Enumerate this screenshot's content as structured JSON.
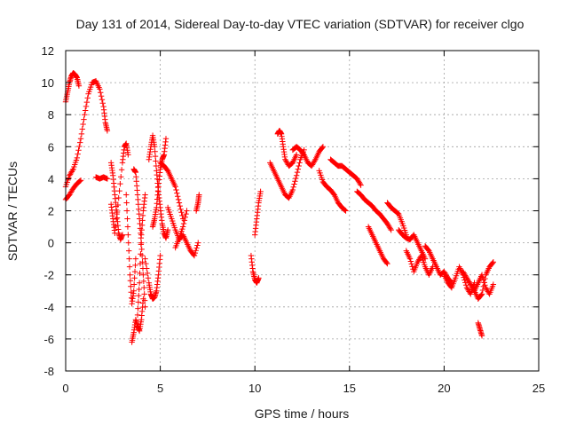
{
  "chart_data": {
    "type": "scatter",
    "title": "Day 131 of 2014, Sidereal Day-to-day VTEC variation (SDTVAR) for receiver clgo",
    "xlabel": "GPS time / hours",
    "ylabel": "SDTVAR / TECUs",
    "xlim": [
      0,
      25
    ],
    "ylim": [
      -8,
      12
    ],
    "xticks": [
      0,
      5,
      10,
      15,
      20,
      25
    ],
    "yticks": [
      -8,
      -6,
      -4,
      -2,
      0,
      2,
      4,
      6,
      8,
      10,
      12
    ],
    "grid": true,
    "marker": "+",
    "color": "#ff0000",
    "series": [
      {
        "name": "SDTVAR",
        "segments": [
          {
            "x": [
              0.0,
              0.2,
              0.4,
              0.6,
              0.8
            ],
            "y": [
              2.7,
              3.0,
              3.4,
              3.7,
              3.9
            ]
          },
          {
            "x": [
              0.0,
              0.1,
              0.2,
              0.3,
              0.4,
              0.5,
              0.6,
              0.7
            ],
            "y": [
              8.8,
              9.4,
              10.0,
              10.4,
              10.6,
              10.5,
              10.3,
              9.8
            ]
          },
          {
            "x": [
              0.0,
              0.2,
              0.4,
              0.6,
              0.8,
              1.0,
              1.2,
              1.4,
              1.6,
              1.8,
              2.0,
              2.1,
              2.2
            ],
            "y": [
              3.5,
              4.2,
              4.6,
              5.3,
              6.5,
              8.0,
              9.3,
              10.0,
              10.1,
              9.6,
              8.5,
              7.5,
              7.0
            ]
          },
          {
            "x": [
              1.6,
              1.8,
              2.0,
              2.2
            ],
            "y": [
              4.1,
              4.0,
              4.1,
              4.0
            ]
          },
          {
            "x": [
              2.4,
              2.5,
              2.6,
              2.7,
              2.8,
              2.9,
              3.0
            ],
            "y": [
              5.0,
              4.2,
              3.0,
              1.8,
              0.6,
              0.2,
              0.5
            ]
          },
          {
            "x": [
              2.4,
              2.5,
              2.6,
              2.8,
              3.0,
              3.1,
              3.2,
              3.3
            ],
            "y": [
              2.4,
              1.5,
              0.6,
              2.8,
              5.0,
              6.0,
              6.2,
              5.5
            ]
          },
          {
            "x": [
              3.2,
              3.3,
              3.4,
              3.5,
              3.6,
              3.7
            ],
            "y": [
              3.0,
              0.5,
              -2.0,
              -3.8,
              -3.0,
              -1.0
            ]
          },
          {
            "x": [
              3.5,
              3.6,
              3.7,
              3.8,
              3.9,
              4.0,
              4.1
            ],
            "y": [
              -6.2,
              -5.6,
              -4.8,
              -5.2,
              -5.5,
              -4.8,
              -3.5
            ]
          },
          {
            "x": [
              3.6,
              3.7,
              3.8,
              3.9,
              4.0,
              4.1,
              4.2
            ],
            "y": [
              4.6,
              4.4,
              3.0,
              1.5,
              0.0,
              -2.0,
              -4.0
            ]
          },
          {
            "x": [
              3.8,
              3.9,
              4.0,
              4.1,
              4.2
            ],
            "y": [
              -4.5,
              -2.5,
              0.5,
              2.0,
              3.0
            ]
          },
          {
            "x": [
              4.2,
              4.4,
              4.5,
              4.6,
              4.7,
              4.8,
              4.9,
              5.0
            ],
            "y": [
              -1.0,
              -2.5,
              -3.2,
              -3.5,
              -3.4,
              -3.0,
              -2.0,
              -0.8
            ]
          },
          {
            "x": [
              4.4,
              4.5,
              4.6,
              4.7,
              4.8,
              4.9,
              5.0,
              5.1,
              5.2,
              5.3,
              5.4
            ],
            "y": [
              5.2,
              6.0,
              6.7,
              6.0,
              4.5,
              3.2,
              2.2,
              1.2,
              0.6,
              0.3,
              0.8
            ]
          },
          {
            "x": [
              4.6,
              4.7,
              4.8,
              4.9,
              5.0,
              5.1,
              5.2,
              5.3
            ],
            "y": [
              1.0,
              1.5,
              2.2,
              3.5,
              4.6,
              5.2,
              5.5,
              6.5
            ]
          },
          {
            "x": [
              5.0,
              5.2,
              5.4,
              5.6,
              5.8,
              6.0,
              6.2
            ],
            "y": [
              5.0,
              4.8,
              4.5,
              4.0,
              3.5,
              2.5,
              1.5
            ]
          },
          {
            "x": [
              5.4,
              5.6,
              5.8,
              6.0,
              6.2,
              6.4,
              6.6,
              6.8,
              7.0
            ],
            "y": [
              2.2,
              1.5,
              0.8,
              0.2,
              0.5,
              0.0,
              -0.5,
              -0.8,
              0.0
            ]
          },
          {
            "x": [
              5.8,
              6.0,
              6.2,
              6.4
            ],
            "y": [
              -0.3,
              0.3,
              1.0,
              2.0
            ]
          },
          {
            "x": [
              6.9,
              7.0,
              7.05
            ],
            "y": [
              2.0,
              2.5,
              3.0
            ]
          },
          {
            "x": [
              9.8,
              9.9,
              10.0,
              10.1,
              10.2
            ],
            "y": [
              -0.8,
              -1.8,
              -2.3,
              -2.5,
              -2.2
            ]
          },
          {
            "x": [
              10.0,
              10.1,
              10.2,
              10.3
            ],
            "y": [
              0.5,
              1.5,
              2.5,
              3.2
            ]
          },
          {
            "x": [
              10.8,
              11.0,
              11.2,
              11.4,
              11.6,
              11.8,
              12.0,
              12.2,
              12.4,
              12.6
            ],
            "y": [
              5.0,
              4.5,
              4.0,
              3.5,
              3.0,
              2.8,
              3.3,
              4.2,
              5.2,
              5.8
            ]
          },
          {
            "x": [
              11.2,
              11.3,
              11.4,
              11.5,
              11.6,
              11.8,
              12.0,
              12.2
            ],
            "y": [
              6.8,
              7.0,
              6.8,
              6.0,
              5.2,
              4.8,
              5.0,
              5.5
            ]
          },
          {
            "x": [
              12.0,
              12.2,
              12.4,
              12.6,
              12.8,
              13.0,
              13.2,
              13.4,
              13.6
            ],
            "y": [
              5.8,
              6.0,
              5.8,
              5.5,
              5.0,
              4.8,
              5.2,
              5.7,
              6.0
            ]
          },
          {
            "x": [
              13.4,
              13.6,
              13.8,
              14.0,
              14.2,
              14.4,
              14.6,
              14.8
            ],
            "y": [
              4.5,
              3.8,
              3.5,
              3.3,
              3.0,
              2.5,
              2.2,
              2.0
            ]
          },
          {
            "x": [
              14.0,
              14.2,
              14.4,
              14.6,
              14.8,
              15.0,
              15.2,
              15.4,
              15.6
            ],
            "y": [
              5.2,
              5.0,
              4.8,
              4.8,
              4.6,
              4.4,
              4.2,
              4.0,
              3.6
            ]
          },
          {
            "x": [
              15.4,
              15.6,
              15.8,
              16.0,
              16.2,
              16.4,
              16.6,
              16.8,
              17.0,
              17.2
            ],
            "y": [
              3.2,
              3.0,
              2.7,
              2.5,
              2.3,
              2.0,
              1.8,
              1.5,
              1.2,
              0.8
            ]
          },
          {
            "x": [
              16.0,
              16.2,
              16.4,
              16.6,
              16.8,
              17.0
            ],
            "y": [
              1.0,
              0.5,
              0.0,
              -0.5,
              -1.0,
              -1.3
            ]
          },
          {
            "x": [
              17.0,
              17.2,
              17.4,
              17.6,
              17.8,
              18.0
            ],
            "y": [
              2.5,
              2.2,
              2.0,
              1.8,
              1.2,
              0.5
            ]
          },
          {
            "x": [
              17.6,
              17.8,
              18.0,
              18.2,
              18.4,
              18.6,
              18.8,
              19.0
            ],
            "y": [
              0.8,
              0.5,
              0.3,
              0.2,
              0.5,
              0.0,
              -0.5,
              -1.0
            ]
          },
          {
            "x": [
              18.0,
              18.2,
              18.4,
              18.6,
              18.8,
              19.0,
              19.2,
              19.4
            ],
            "y": [
              -0.5,
              -1.0,
              -1.8,
              -1.2,
              -0.8,
              -1.5,
              -2.0,
              -1.5
            ]
          },
          {
            "x": [
              19.0,
              19.2,
              19.4,
              19.6,
              19.8,
              20.0,
              20.2,
              20.4
            ],
            "y": [
              -0.2,
              -0.5,
              -1.0,
              -1.5,
              -2.0,
              -1.8,
              -2.2,
              -2.5
            ]
          },
          {
            "x": [
              20.0,
              20.2,
              20.4,
              20.6,
              20.8,
              21.0,
              21.2,
              21.4,
              21.6
            ],
            "y": [
              -2.0,
              -2.5,
              -2.8,
              -2.2,
              -1.5,
              -2.0,
              -2.8,
              -3.2,
              -2.5
            ]
          },
          {
            "x": [
              21.0,
              21.2,
              21.4,
              21.6,
              21.8,
              22.0,
              22.2,
              22.4,
              22.6
            ],
            "y": [
              -1.8,
              -2.2,
              -2.6,
              -3.0,
              -2.5,
              -2.0,
              -2.8,
              -3.2,
              -2.6
            ]
          },
          {
            "x": [
              21.6,
              21.8,
              22.0,
              22.2,
              22.4,
              22.6
            ],
            "y": [
              -3.0,
              -3.5,
              -3.2,
              -2.0,
              -1.5,
              -1.2
            ]
          },
          {
            "x": [
              21.8,
              21.9,
              22.0
            ],
            "y": [
              -5.0,
              -5.4,
              -5.8
            ]
          }
        ]
      }
    ]
  }
}
